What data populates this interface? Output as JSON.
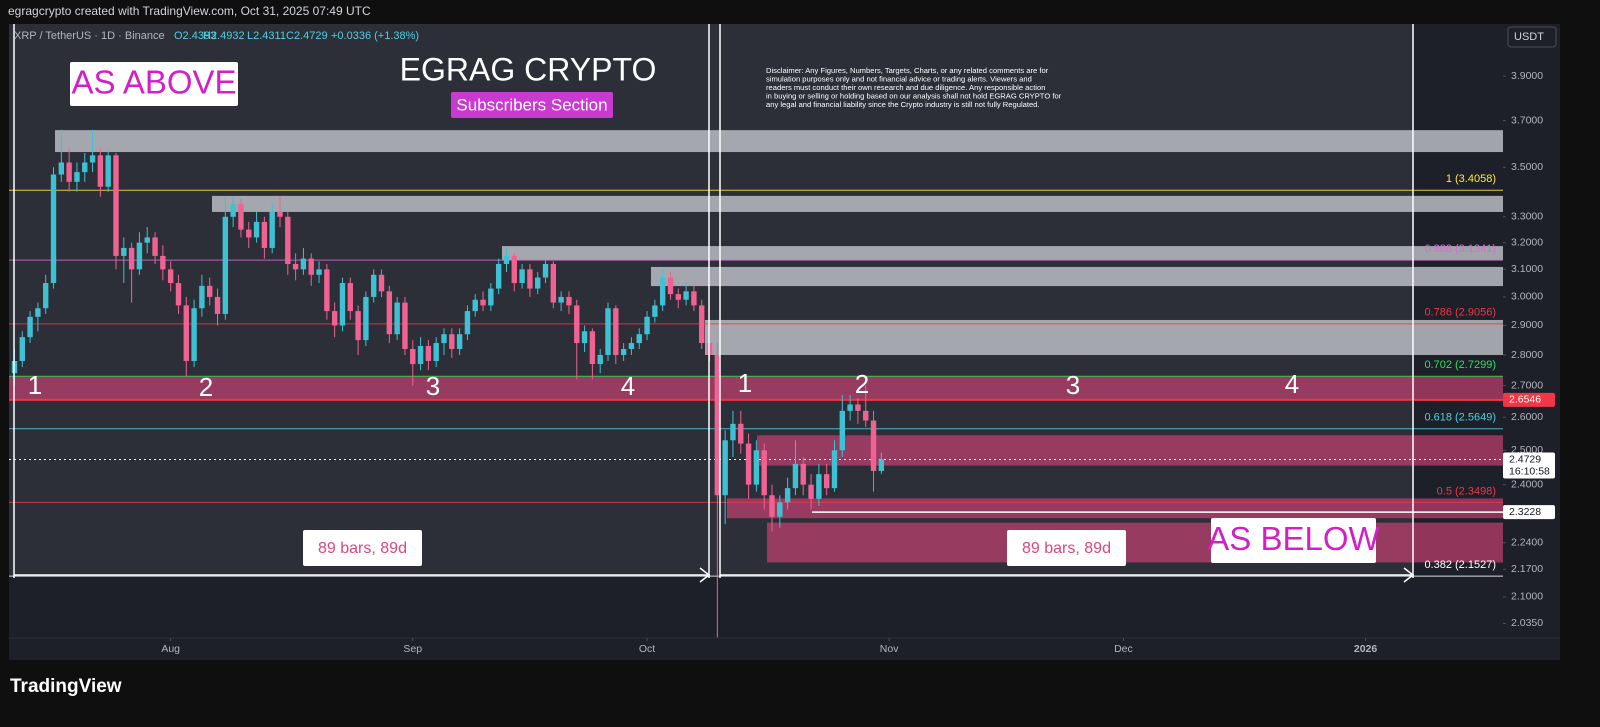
{
  "header": "egragcrypto created with TradingView.com, Oct 31, 2025 07:49 UTC",
  "footer": "TradingView",
  "chart_data": {
    "type": "candlestick",
    "symbol": "XRP / TetherUS · 1D · Binance",
    "legend_values": [
      "O2.4393",
      "H2.4932",
      "L2.4311",
      "C2.4729",
      "+0.0336 (+1.38%)"
    ],
    "currency": "USDT",
    "title": "EGRAG CRYPTO",
    "subtitle": "Subscribers Section",
    "disclaimer": [
      "Disclaimer: Any Figures, Numbers, Targets, Charts, or any related comments are for",
      "simulation purposes only and not financial advice or trading alerts. Viewers and",
      "readers must conduct their own research and due diligence. Any responsible action",
      "in buying or selling or holding based on our analysis shall not hold EGRAG CRYPTO for",
      "any legal and financial liability since the Crypto industry is still not fully Regulated."
    ],
    "annotations": [
      "AS ABOVE",
      "AS BELOW",
      "89 bars, 89d",
      "89 bars, 89d"
    ],
    "cycle_labels": [
      "1",
      "2",
      "3",
      "4",
      "1",
      "2",
      "3",
      "4"
    ],
    "up_color": "#3fc1d3",
    "down_color": "#f06292",
    "log_scale": true,
    "ohlc": [
      [
        2.74,
        2.82,
        2.7,
        2.78
      ],
      [
        2.78,
        2.88,
        2.76,
        2.86
      ],
      [
        2.86,
        2.95,
        2.84,
        2.93
      ],
      [
        2.93,
        2.98,
        2.88,
        2.96
      ],
      [
        2.96,
        3.08,
        2.94,
        3.05
      ],
      [
        3.05,
        3.5,
        3.03,
        3.47
      ],
      [
        3.47,
        3.66,
        3.44,
        3.52
      ],
      [
        3.52,
        3.58,
        3.4,
        3.44
      ],
      [
        3.44,
        3.52,
        3.4,
        3.48
      ],
      [
        3.48,
        3.56,
        3.44,
        3.52
      ],
      [
        3.52,
        3.66,
        3.48,
        3.55
      ],
      [
        3.55,
        3.58,
        3.38,
        3.42
      ],
      [
        3.42,
        3.57,
        3.4,
        3.55
      ],
      [
        3.55,
        3.56,
        3.1,
        3.15
      ],
      [
        3.15,
        3.22,
        3.05,
        3.18
      ],
      [
        3.18,
        3.2,
        2.98,
        3.1
      ],
      [
        3.1,
        3.24,
        3.08,
        3.2
      ],
      [
        3.2,
        3.26,
        3.16,
        3.22
      ],
      [
        3.22,
        3.24,
        3.12,
        3.15
      ],
      [
        3.15,
        3.19,
        3.06,
        3.1
      ],
      [
        3.1,
        3.13,
        3.02,
        3.05
      ],
      [
        3.05,
        3.08,
        2.94,
        2.97
      ],
      [
        2.97,
        3.0,
        2.73,
        2.78
      ],
      [
        2.78,
        2.99,
        2.76,
        2.96
      ],
      [
        2.96,
        3.08,
        2.93,
        3.04
      ],
      [
        3.04,
        3.07,
        2.97,
        3.0
      ],
      [
        3.0,
        3.03,
        2.9,
        2.94
      ],
      [
        2.94,
        3.38,
        2.92,
        3.3
      ],
      [
        3.3,
        3.38,
        3.26,
        3.35
      ],
      [
        3.35,
        3.37,
        3.22,
        3.25
      ],
      [
        3.25,
        3.28,
        3.18,
        3.22
      ],
      [
        3.22,
        3.32,
        3.2,
        3.28
      ],
      [
        3.28,
        3.3,
        3.14,
        3.18
      ],
      [
        3.18,
        3.35,
        3.16,
        3.32
      ],
      [
        3.32,
        3.38,
        3.26,
        3.3
      ],
      [
        3.3,
        3.32,
        3.08,
        3.12
      ],
      [
        3.12,
        3.16,
        3.06,
        3.1
      ],
      [
        3.1,
        3.18,
        3.08,
        3.14
      ],
      [
        3.14,
        3.16,
        3.04,
        3.08
      ],
      [
        3.08,
        3.13,
        3.05,
        3.1
      ],
      [
        3.1,
        3.12,
        2.92,
        2.95
      ],
      [
        2.95,
        2.98,
        2.86,
        2.9
      ],
      [
        2.9,
        3.07,
        2.88,
        3.05
      ],
      [
        3.05,
        3.07,
        2.92,
        2.95
      ],
      [
        2.95,
        2.97,
        2.8,
        2.85
      ],
      [
        2.85,
        3.02,
        2.83,
        3.0
      ],
      [
        3.0,
        3.1,
        2.98,
        3.08
      ],
      [
        3.08,
        3.1,
        3.0,
        3.02
      ],
      [
        3.02,
        3.04,
        2.84,
        2.87
      ],
      [
        2.87,
        3.0,
        2.85,
        2.98
      ],
      [
        2.98,
        3.0,
        2.8,
        2.82
      ],
      [
        2.82,
        2.85,
        2.7,
        2.77
      ],
      [
        2.77,
        2.86,
        2.75,
        2.83
      ],
      [
        2.83,
        2.85,
        2.75,
        2.78
      ],
      [
        2.78,
        2.86,
        2.76,
        2.84
      ],
      [
        2.84,
        2.89,
        2.8,
        2.87
      ],
      [
        2.87,
        2.89,
        2.79,
        2.82
      ],
      [
        2.82,
        2.89,
        2.8,
        2.87
      ],
      [
        2.87,
        2.97,
        2.85,
        2.95
      ],
      [
        2.95,
        3.01,
        2.93,
        2.99
      ],
      [
        2.99,
        3.02,
        2.95,
        2.97
      ],
      [
        2.97,
        3.05,
        2.95,
        3.03
      ],
      [
        3.03,
        3.14,
        3.01,
        3.12
      ],
      [
        3.12,
        3.18,
        3.09,
        3.15
      ],
      [
        3.15,
        3.16,
        3.02,
        3.05
      ],
      [
        3.05,
        3.12,
        3.03,
        3.1
      ],
      [
        3.1,
        3.12,
        3.0,
        3.03
      ],
      [
        3.03,
        3.09,
        3.01,
        3.07
      ],
      [
        3.07,
        3.14,
        3.05,
        3.12
      ],
      [
        3.12,
        3.13,
        2.96,
        2.98
      ],
      [
        2.98,
        3.02,
        2.95,
        3.0
      ],
      [
        3.0,
        3.02,
        2.94,
        2.97
      ],
      [
        2.97,
        2.99,
        2.72,
        2.84
      ],
      [
        2.84,
        2.9,
        2.81,
        2.88
      ],
      [
        2.88,
        2.89,
        2.72,
        2.77
      ],
      [
        2.77,
        2.82,
        2.74,
        2.8
      ],
      [
        2.8,
        2.98,
        2.78,
        2.96
      ],
      [
        2.96,
        2.97,
        2.77,
        2.8
      ],
      [
        2.8,
        2.84,
        2.78,
        2.82
      ],
      [
        2.82,
        2.86,
        2.8,
        2.84
      ],
      [
        2.84,
        2.89,
        2.82,
        2.87
      ],
      [
        2.87,
        2.95,
        2.85,
        2.93
      ],
      [
        2.93,
        2.99,
        2.91,
        2.97
      ],
      [
        2.97,
        3.1,
        2.95,
        3.07
      ],
      [
        3.07,
        3.09,
        2.99,
        3.01
      ],
      [
        3.01,
        3.03,
        2.96,
        2.99
      ],
      [
        2.99,
        3.05,
        2.97,
        3.02
      ],
      [
        3.02,
        3.04,
        2.95,
        2.97
      ],
      [
        2.97,
        2.99,
        2.82,
        2.84
      ],
      [
        2.84,
        2.9,
        2.78,
        2.8
      ],
      [
        2.8,
        2.84,
        2.0,
        2.37
      ],
      [
        2.37,
        2.56,
        2.29,
        2.53
      ],
      [
        2.53,
        2.62,
        2.48,
        2.58
      ],
      [
        2.58,
        2.62,
        2.49,
        2.52
      ],
      [
        2.52,
        2.55,
        2.36,
        2.4
      ],
      [
        2.4,
        2.53,
        2.38,
        2.5
      ],
      [
        2.5,
        2.52,
        2.33,
        2.37
      ],
      [
        2.37,
        2.4,
        2.27,
        2.31
      ],
      [
        2.31,
        2.37,
        2.28,
        2.35
      ],
      [
        2.35,
        2.42,
        2.33,
        2.39
      ],
      [
        2.39,
        2.53,
        2.37,
        2.46
      ],
      [
        2.46,
        2.48,
        2.37,
        2.4
      ],
      [
        2.4,
        2.43,
        2.33,
        2.36
      ],
      [
        2.36,
        2.46,
        2.34,
        2.43
      ],
      [
        2.43,
        2.46,
        2.37,
        2.39
      ],
      [
        2.39,
        2.53,
        2.38,
        2.5
      ],
      [
        2.5,
        2.67,
        2.48,
        2.62
      ],
      [
        2.62,
        2.67,
        2.59,
        2.64
      ],
      [
        2.64,
        2.66,
        2.58,
        2.62
      ],
      [
        2.62,
        2.7,
        2.57,
        2.59
      ],
      [
        2.59,
        2.62,
        2.38,
        2.4393
      ],
      [
        2.4393,
        2.4932,
        2.4311,
        2.4729
      ]
    ],
    "xlim": [
      -0.7,
      190.6
    ],
    "xticks": [
      {
        "value": 20,
        "label": "Aug"
      },
      {
        "value": 51,
        "label": "Sep"
      },
      {
        "value": 81,
        "label": "Oct"
      },
      {
        "value": 112,
        "label": "Nov"
      },
      {
        "value": 142,
        "label": "Dec"
      },
      {
        "value": 173,
        "label": "2026"
      }
    ],
    "ylim": [
      2.0,
      4.15
    ],
    "yticks": [
      {
        "value": 3.9,
        "label": "3.9000"
      },
      {
        "value": 3.7,
        "label": "3.7000"
      },
      {
        "value": 3.5,
        "label": "3.5000"
      },
      {
        "value": 3.3,
        "label": "3.3000"
      },
      {
        "value": 3.2,
        "label": "3.2000"
      },
      {
        "value": 3.1,
        "label": "3.1000"
      },
      {
        "value": 3.0,
        "label": "3.0000"
      },
      {
        "value": 2.9,
        "label": "2.9000"
      },
      {
        "value": 2.8,
        "label": "2.8000"
      },
      {
        "value": 2.7,
        "label": "2.7000"
      },
      {
        "value": 2.6,
        "label": "2.6000"
      },
      {
        "value": 2.5,
        "label": "2.5000"
      },
      {
        "value": 2.4,
        "label": "2.4000"
      },
      {
        "value": 2.24,
        "label": "2.2400"
      },
      {
        "value": 2.17,
        "label": "2.1700"
      },
      {
        "value": 2.1,
        "label": "2.1000"
      },
      {
        "value": 2.035,
        "label": "2.0350"
      }
    ],
    "fib_levels": [
      {
        "value": 3.4058,
        "label": "1 (3.4058)",
        "color": "#ffeb3b"
      },
      {
        "value": 3.1341,
        "label": "0.888 (3.1341)",
        "color": "#d36fd0"
      },
      {
        "value": 2.9056,
        "label": "0.786 (2.9056)",
        "color": "#f23645"
      },
      {
        "value": 2.7299,
        "label": "0.702 (2.7299)",
        "color": "#2ee05a"
      },
      {
        "value": 2.5649,
        "label": "0.618 (2.5649)",
        "color": "#4dd0e1"
      },
      {
        "value": 2.3498,
        "label": "0.5 (2.3498)",
        "color": "#f23645"
      },
      {
        "value": 2.1527,
        "label": "0.382 (2.1527)",
        "color": "#ffffff"
      }
    ],
    "zones": [
      {
        "low": 3.564,
        "high": 3.658,
        "color": "#c4c6cc"
      },
      {
        "low": 3.319,
        "high": 3.383,
        "color": "#c4c6cc"
      },
      {
        "low": 3.134,
        "high": 3.187,
        "color": "#c4c6cc"
      },
      {
        "low": 3.039,
        "high": 3.109,
        "color": "#c4c6cc"
      },
      {
        "low": 2.8,
        "high": 2.919,
        "color": "#c4c6cc"
      },
      {
        "low": 2.654,
        "high": 2.73,
        "color": "#e0457b"
      },
      {
        "low": 2.455,
        "high": 2.545,
        "color": "#e0457b"
      },
      {
        "low": 2.306,
        "high": 2.361,
        "color": "#e0457b"
      },
      {
        "low": 2.188,
        "high": 2.294,
        "color": "#e0457b"
      }
    ],
    "alert_price": 2.6546,
    "last_price": 2.4729,
    "countdown": "16:10:58",
    "support_price": 2.3228
  }
}
